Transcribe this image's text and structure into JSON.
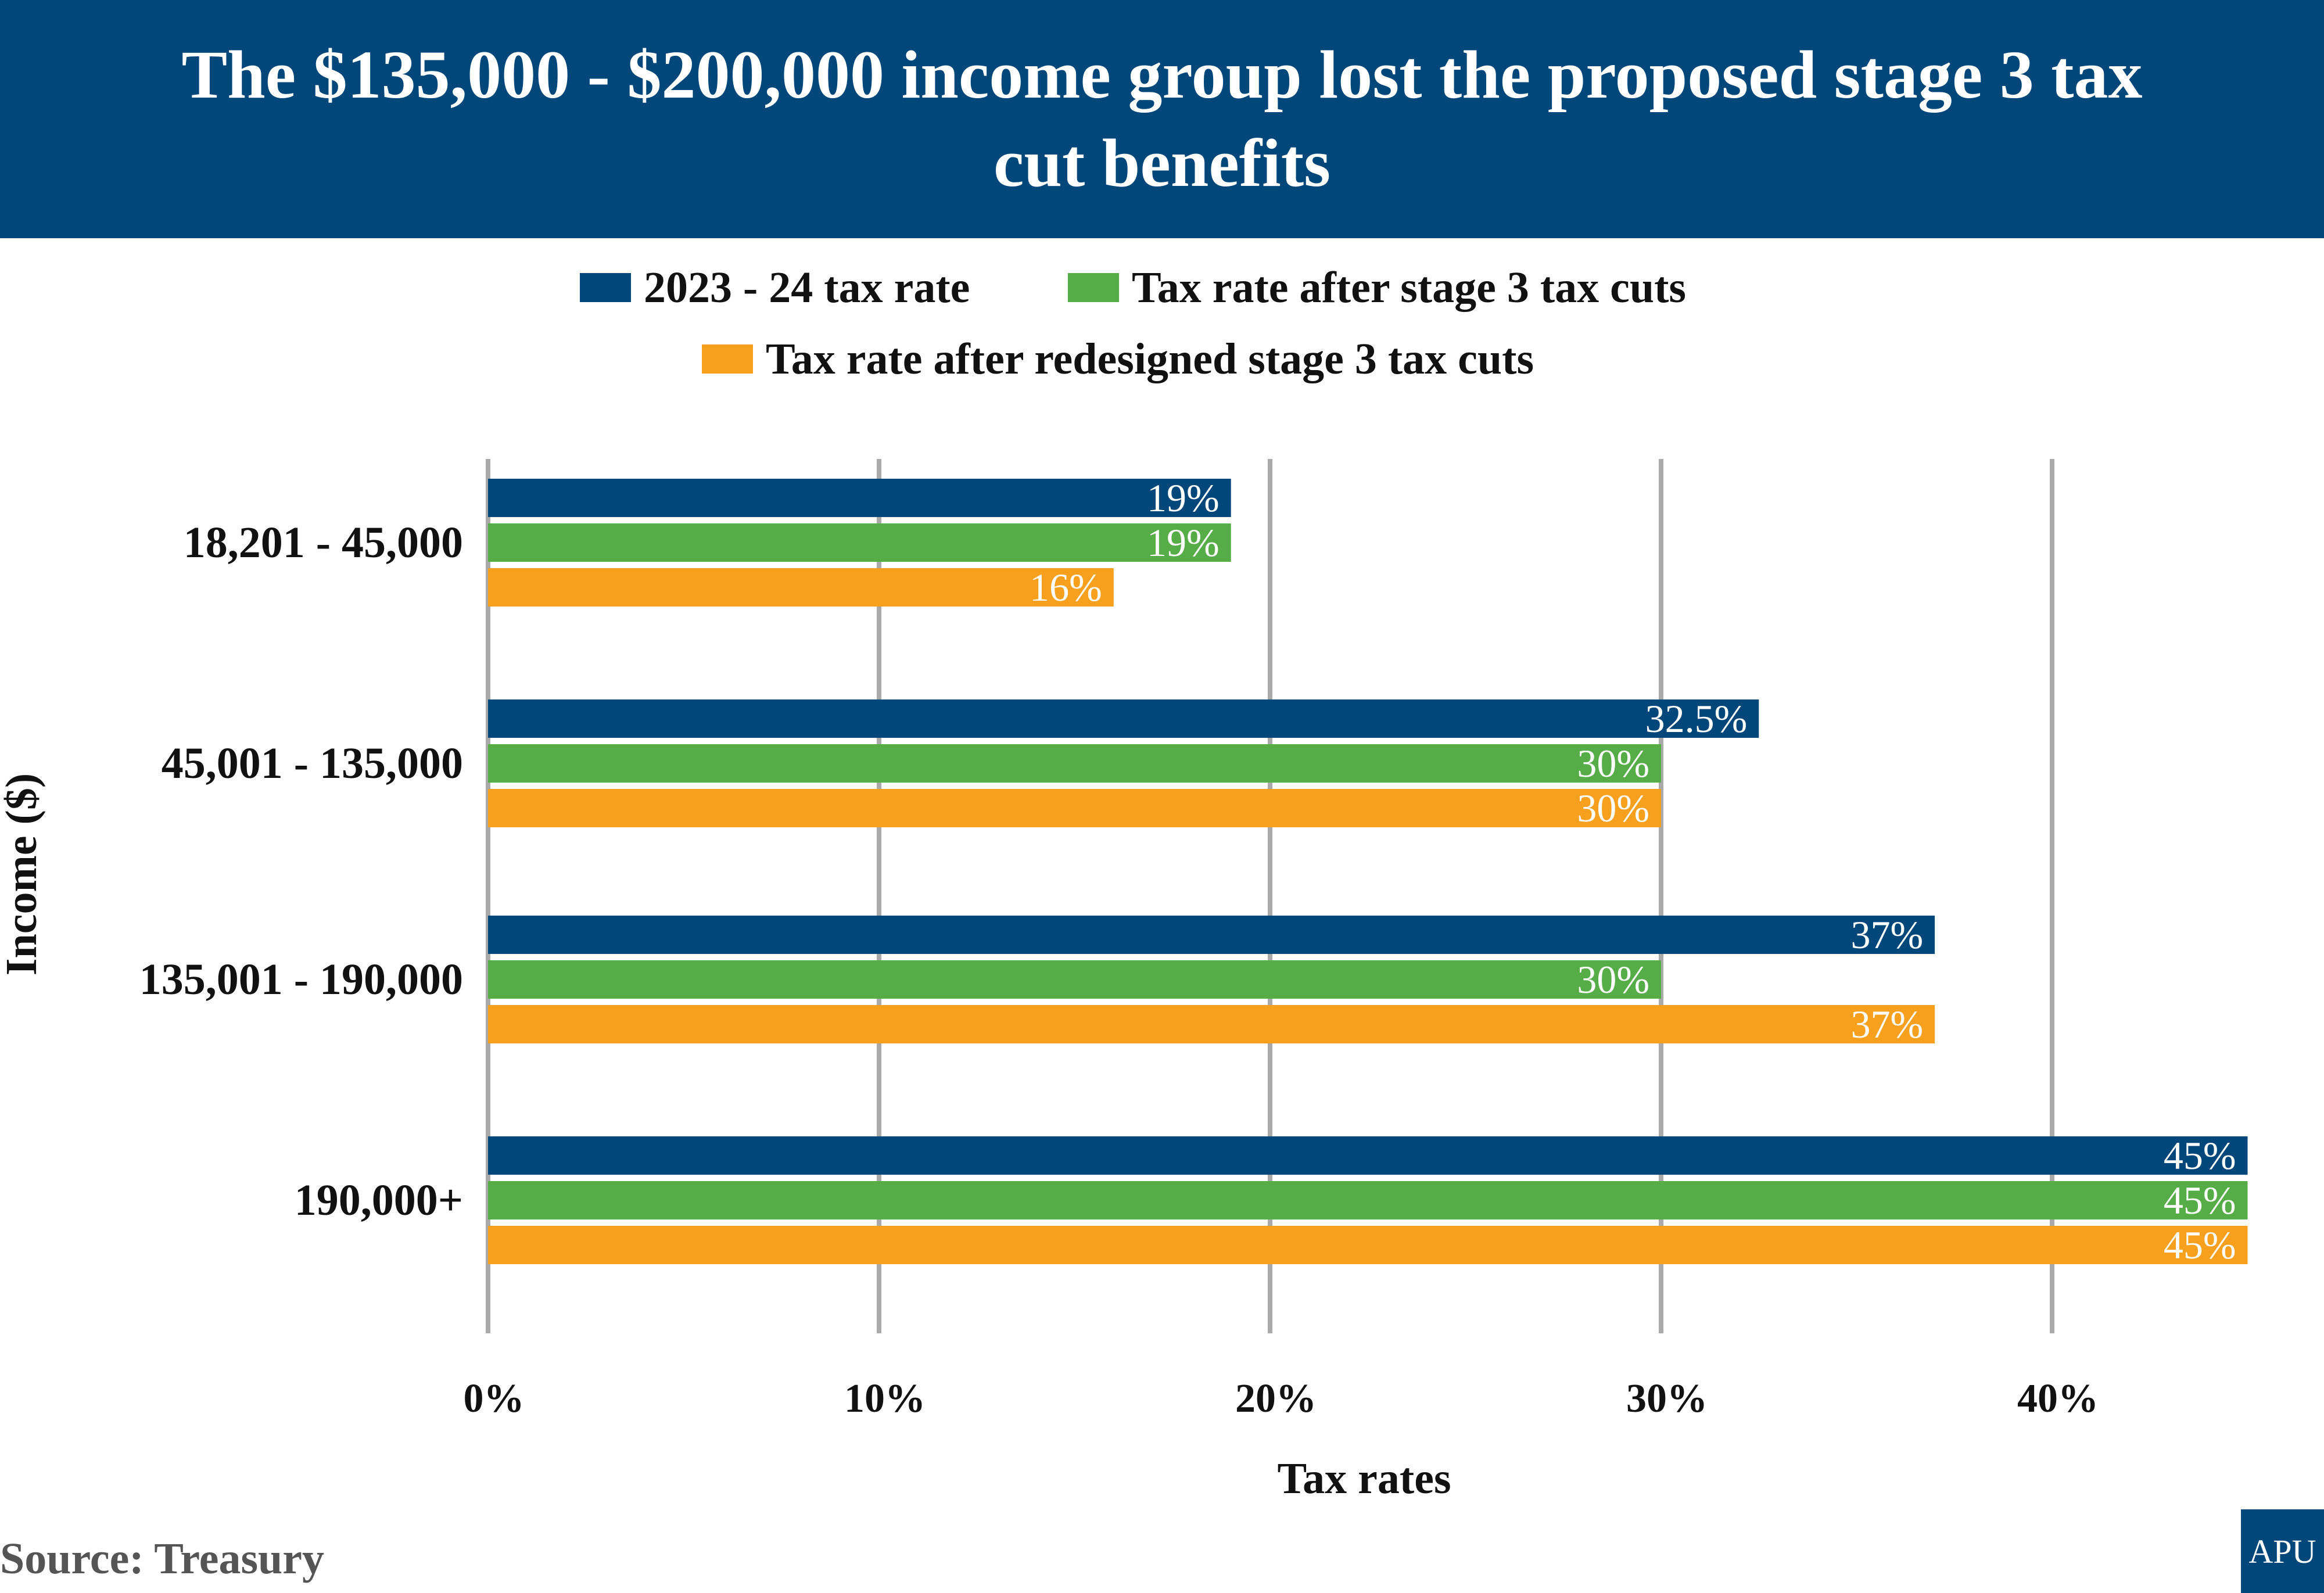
{
  "title": "The $135,000 - $200,000 income group lost the proposed stage 3 tax cut benefits",
  "source": "Source:  Treasury",
  "logo_text": "APU",
  "colors": {
    "header": "#02477a",
    "series1": "#02477a",
    "series2": "#56ad47",
    "series3": "#f7a01e",
    "grid": "#aaaaaa"
  },
  "chart_data": {
    "type": "bar",
    "orientation": "horizontal",
    "title": "The $135,000 - $200,000 income group lost the proposed stage 3 tax cut benefits",
    "xlabel": "Tax rates",
    "ylabel": "Income ($)",
    "categories": [
      "18,201 - 45,000",
      "45,001 - 135,000",
      "135,001 - 190,000",
      "190,000+"
    ],
    "series": [
      {
        "name": "2023 - 24 tax rate",
        "values": [
          19,
          32.5,
          37,
          45
        ],
        "labels": [
          "19%",
          "32.5%",
          "37%",
          "45%"
        ],
        "color": "#02477a"
      },
      {
        "name": "Tax rate after stage 3 tax cuts",
        "values": [
          19,
          30,
          30,
          45
        ],
        "labels": [
          "19%",
          "30%",
          "30%",
          "45%"
        ],
        "color": "#56ad47"
      },
      {
        "name": "Tax rate after redesigned stage 3 tax cuts",
        "values": [
          16,
          30,
          37,
          45
        ],
        "labels": [
          "16%",
          "30%",
          "37%",
          "45%"
        ],
        "color": "#f7a01e"
      }
    ],
    "xticks": [
      0,
      10,
      20,
      30,
      40
    ],
    "xtick_labels": [
      "0%",
      "10%",
      "20%",
      "30%",
      "40%"
    ],
    "xlim": [
      0,
      45
    ],
    "grid": "vertical",
    "legend_position": "top"
  }
}
